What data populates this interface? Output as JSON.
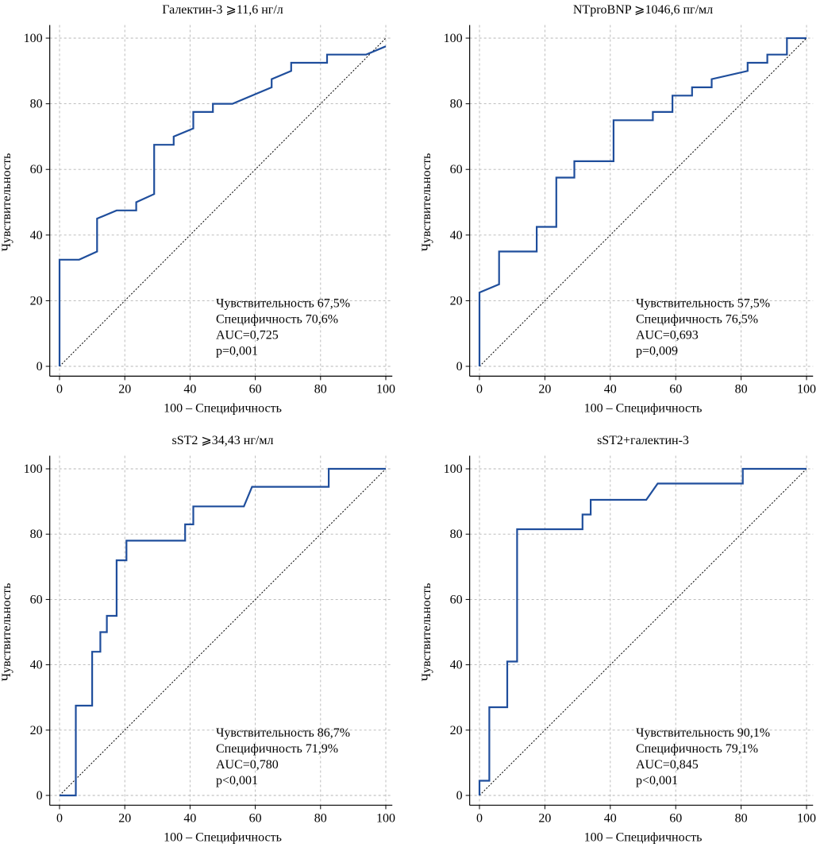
{
  "chart_data": [
    {
      "type": "line",
      "title": "Галектин-3 ⩾11,6 нг/л",
      "xlabel": "100 – Специфичность",
      "ylabel": "Чувствительность",
      "xlim": [
        -3,
        102
      ],
      "ylim": [
        -3,
        104
      ],
      "xticks": [
        0,
        20,
        40,
        60,
        80,
        100
      ],
      "yticks": [
        0,
        20,
        40,
        60,
        80,
        100
      ],
      "grid": true,
      "colors": {
        "roc": "#1f4e9c",
        "reference": "#000000",
        "grid": "#b5b5b5"
      },
      "series": [
        {
          "x": [
            0,
            0,
            6,
            11.5,
            11.5,
            17.5,
            23.5,
            23.5,
            29,
            29,
            35,
            35,
            41,
            41,
            47,
            47,
            53,
            65,
            65,
            71,
            71,
            82,
            82,
            94,
            100
          ],
          "y": [
            0,
            32.5,
            32.5,
            35,
            45,
            47.5,
            47.5,
            50,
            52.5,
            67.5,
            67.5,
            70,
            72.5,
            77.5,
            77.5,
            80,
            80,
            85,
            87.5,
            90,
            92.5,
            92.5,
            95,
            95,
            97.5
          ]
        }
      ],
      "reference_line": [
        [
          0,
          0
        ],
        [
          100,
          100
        ]
      ],
      "annotations": [
        "Чувствительность 67,5%",
        "Специфичность 70,6%",
        "AUC=0,725",
        "p=0,001"
      ]
    },
    {
      "type": "line",
      "title": "NTproBNP ⩾1046,6 пг/мл",
      "xlabel": "100 – Специфичность",
      "ylabel": "Чувствительность",
      "xlim": [
        -3,
        102
      ],
      "ylim": [
        -3,
        104
      ],
      "xticks": [
        0,
        20,
        40,
        60,
        80,
        100
      ],
      "yticks": [
        0,
        20,
        40,
        60,
        80,
        100
      ],
      "grid": true,
      "colors": {
        "roc": "#1f4e9c",
        "reference": "#000000",
        "grid": "#b5b5b5"
      },
      "series": [
        {
          "x": [
            0,
            0,
            6,
            6,
            17.5,
            17.5,
            23.5,
            23.5,
            29,
            29,
            41,
            41,
            53,
            53,
            59,
            59,
            65,
            65,
            71,
            71,
            82,
            82,
            88,
            88,
            94,
            94,
            100
          ],
          "y": [
            0,
            22.5,
            25,
            35,
            35,
            42.5,
            42.5,
            57.5,
            57.5,
            62.5,
            62.5,
            75,
            75,
            77.5,
            77.5,
            82.5,
            82.5,
            85,
            85,
            87.5,
            90,
            92.5,
            92.5,
            95,
            95,
            100,
            100
          ]
        }
      ],
      "reference_line": [
        [
          0,
          0
        ],
        [
          100,
          100
        ]
      ],
      "annotations": [
        "Чувствительность 57,5%",
        "Специфичность 76,5%",
        "AUC=0,693",
        "p=0,009"
      ]
    },
    {
      "type": "line",
      "title": "sST2 ⩾34,43 нг/мл",
      "xlabel": "100 – Специфичность",
      "ylabel": "Чувствительность",
      "xlim": [
        -3,
        102
      ],
      "ylim": [
        -3,
        104
      ],
      "xticks": [
        0,
        20,
        40,
        60,
        80,
        100
      ],
      "yticks": [
        0,
        20,
        40,
        60,
        80,
        100
      ],
      "grid": true,
      "colors": {
        "roc": "#1f4e9c",
        "reference": "#000000",
        "grid": "#b5b5b5"
      },
      "series": [
        {
          "x": [
            0,
            5,
            5,
            10,
            10,
            12.5,
            12.5,
            14.5,
            14.5,
            17.5,
            17.5,
            20.5,
            20.5,
            38.5,
            38.5,
            41,
            41,
            56.5,
            59,
            59,
            82.5,
            82.5,
            100
          ],
          "y": [
            0,
            0,
            27.5,
            27.5,
            44,
            44,
            50,
            50,
            55,
            55,
            72,
            72,
            78,
            78,
            83,
            83,
            88.5,
            88.5,
            94.5,
            94.5,
            94.5,
            100,
            100
          ]
        }
      ],
      "reference_line": [
        [
          0,
          0
        ],
        [
          100,
          100
        ]
      ],
      "annotations": [
        "Чувствительность 86,7%",
        "Специфичность 71,9%",
        "AUC=0,780",
        "p<0,001"
      ]
    },
    {
      "type": "line",
      "title": "sST2+галектин-3",
      "xlabel": "100 – Специфичность",
      "ylabel": "Чувствительность",
      "xlim": [
        -3,
        102
      ],
      "ylim": [
        -3,
        104
      ],
      "xticks": [
        0,
        20,
        40,
        60,
        80,
        100
      ],
      "yticks": [
        0,
        20,
        40,
        60,
        80,
        100
      ],
      "grid": true,
      "colors": {
        "roc": "#1f4e9c",
        "reference": "#000000",
        "grid": "#b5b5b5"
      },
      "series": [
        {
          "x": [
            0,
            0,
            3,
            3,
            8.5,
            8.5,
            11.5,
            11.5,
            31.5,
            31.5,
            34,
            34,
            51,
            54.5,
            80.5,
            80.5,
            100
          ],
          "y": [
            0,
            4.5,
            4.5,
            27,
            27,
            41,
            41,
            81.5,
            81.5,
            86,
            86,
            90.5,
            90.5,
            95.5,
            95.5,
            100,
            100
          ]
        }
      ],
      "reference_line": [
        [
          0,
          0
        ],
        [
          100,
          100
        ]
      ],
      "annotations": [
        "Чувствительность 90,1%",
        "Специфичность 79,1%",
        "AUC=0,845",
        "p<0,001"
      ]
    }
  ]
}
